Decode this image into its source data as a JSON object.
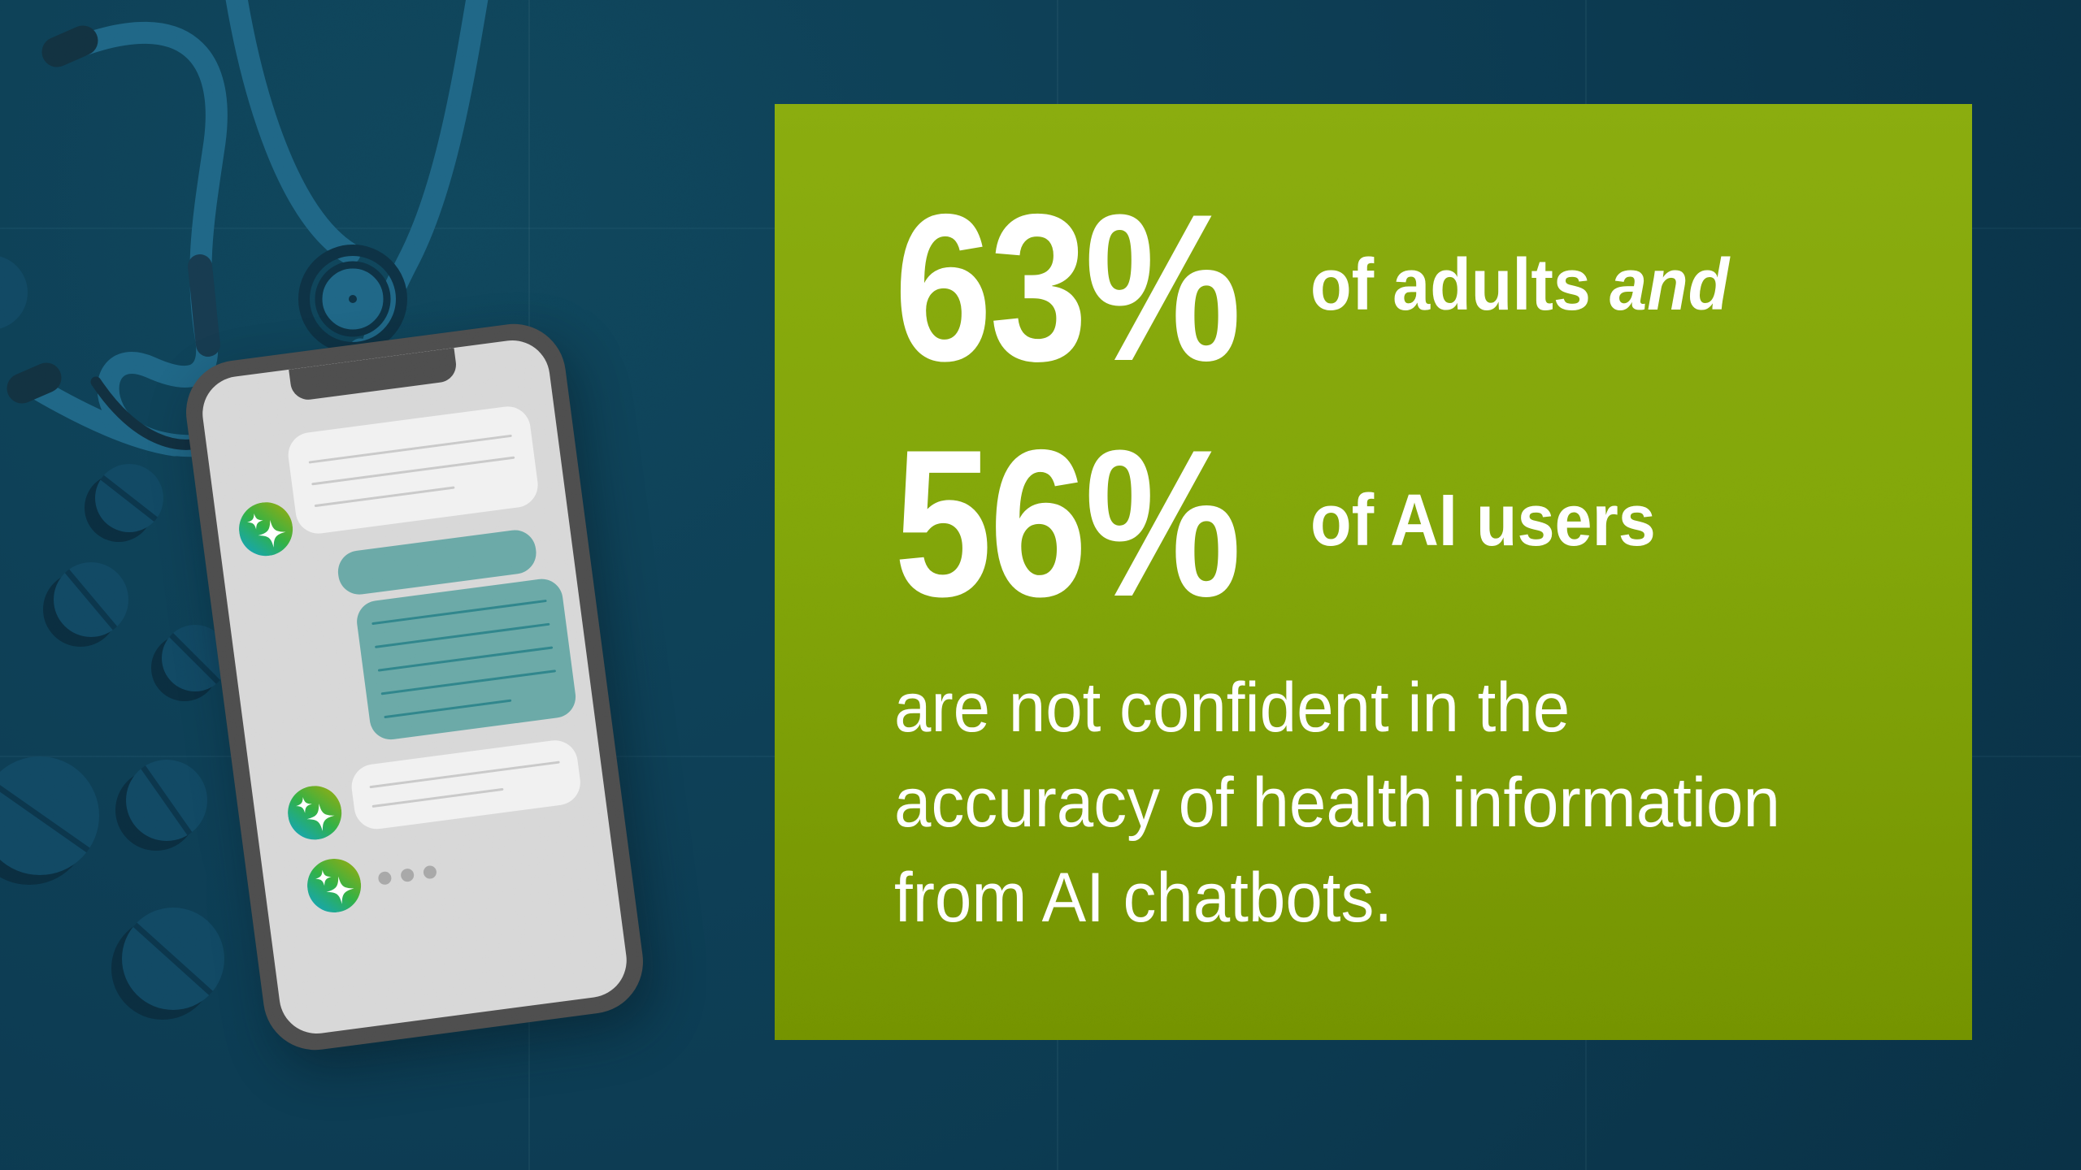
{
  "panel": {
    "stats": [
      {
        "value": "63%",
        "label": "of adults",
        "label_italic": "and"
      },
      {
        "value": "56%",
        "label": "of AI users",
        "label_italic": ""
      }
    ],
    "description_lines": [
      "are not confident in the",
      "accuracy of health information",
      "from AI chatbots."
    ]
  },
  "illustration": {
    "icons": {
      "ai_avatar": "ai-sparkle-icon",
      "typing": "typing-indicator-dots",
      "background_left": "stethoscope-icon",
      "scattered": "pill-icon",
      "device": "smartphone-chat-illustration"
    }
  },
  "colors": {
    "background": "#0c3a50",
    "panel_green_top": "#85a90e",
    "panel_green_bottom": "#6f8e00",
    "text": "#ffffff",
    "phone_frame": "#4b4b4b",
    "phone_screen": "#d6d6d6",
    "bubble_white": "#f1f1f1",
    "bubble_teal": "#67a6a4",
    "bubble_teal_line": "#2e8187",
    "pill": "#114660",
    "stethoscope_tube": "#1e6382",
    "avatar_gradient": [
      "#12a0b4",
      "#2fae43",
      "#8aa812"
    ]
  }
}
